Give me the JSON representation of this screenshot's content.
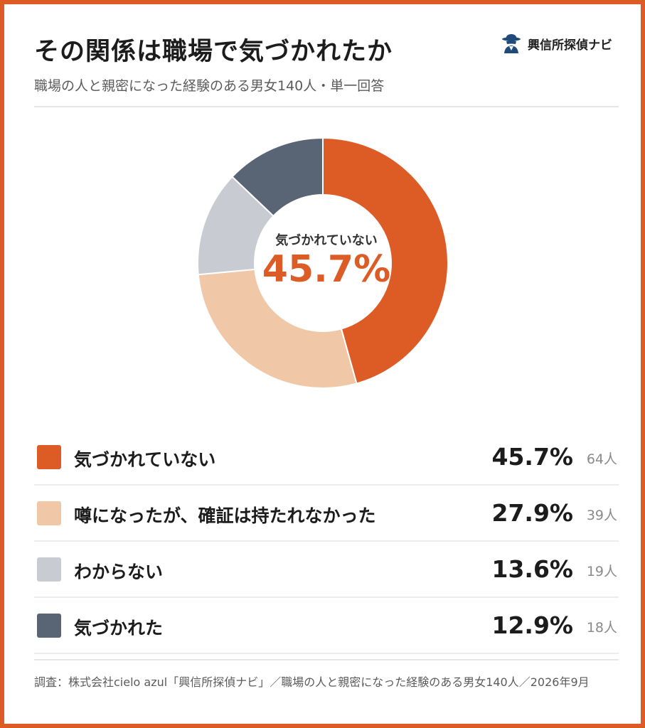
{
  "header": {
    "title": "その関係は職場で気づかれたか",
    "subtitle": "職場の人と親密になった経験のある男女140人・単一回答"
  },
  "brand": {
    "name": "興信所探偵ナビ",
    "icon": "detective-icon"
  },
  "center": {
    "label": "気づかれていない",
    "value": "45.7%"
  },
  "legend": [
    {
      "label": "気づかれていない",
      "pct": "45.7%",
      "count": "64人",
      "color": "#dd5b24"
    },
    {
      "label": "噂になったが、確証は持たれなかった",
      "pct": "27.9%",
      "count": "39人",
      "color": "#f0c8a8"
    },
    {
      "label": "わからない",
      "pct": "13.6%",
      "count": "19人",
      "color": "#c8ccd2"
    },
    {
      "label": "気づかれた",
      "pct": "12.9%",
      "count": "18人",
      "color": "#596575"
    }
  ],
  "footnote": "調査：株式会社cielo azul「興信所探偵ナビ」／職場の人と親密になった経験のある男女140人／2026年9月",
  "chart_data": {
    "type": "pie",
    "donut": true,
    "categories": [
      "気づかれていない",
      "噂になったが、確証は持たれなかった",
      "わからない",
      "気づかれた"
    ],
    "values": [
      45.7,
      27.9,
      13.6,
      12.9
    ],
    "counts": [
      64,
      39,
      19,
      18
    ],
    "colors": [
      "#dd5b24",
      "#f0c8a8",
      "#c8ccd2",
      "#596575"
    ],
    "title": "その関係は職場で気づかれたか",
    "subtitle": "職場の人と親密になった経験のある男女140人・単一回答",
    "legend": "bottom"
  }
}
